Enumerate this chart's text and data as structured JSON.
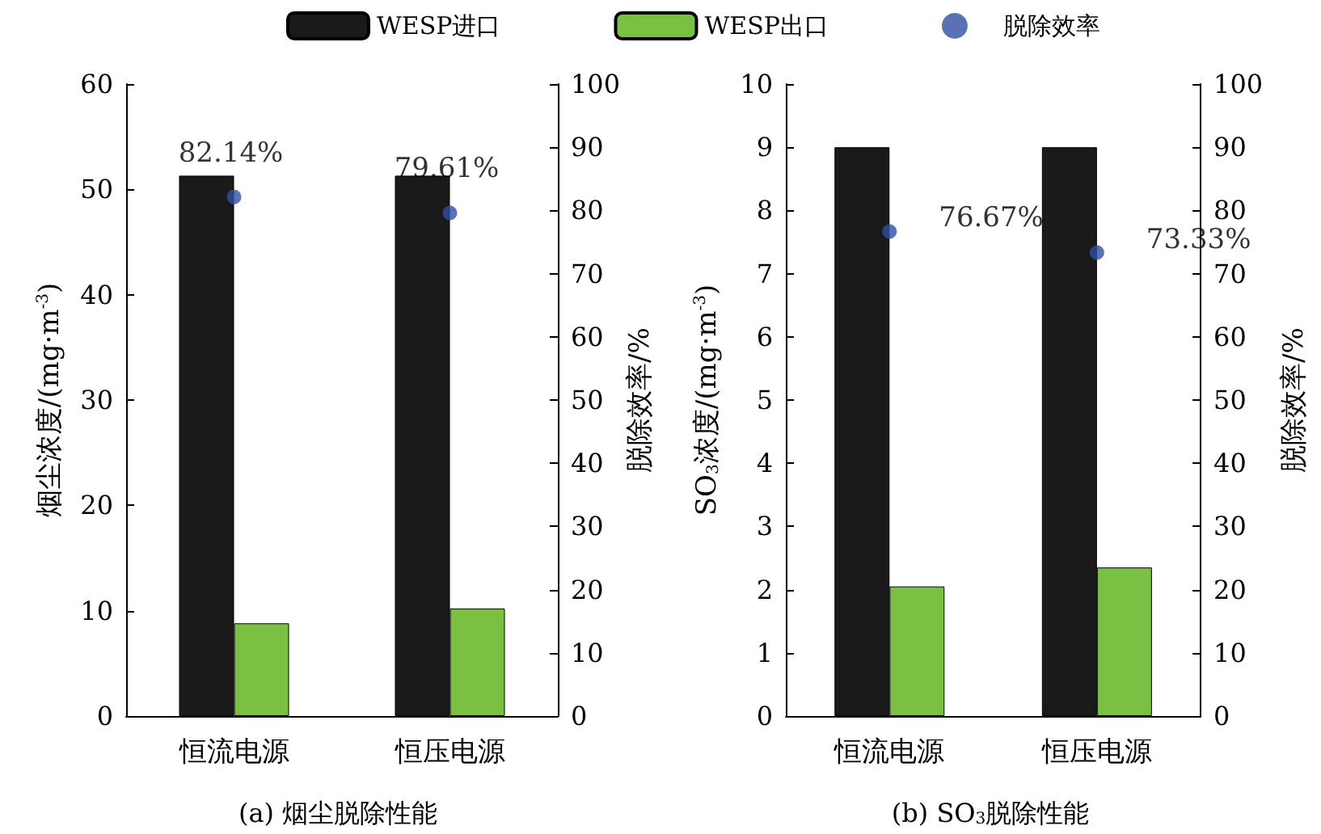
{
  "chart_data": [
    {
      "type": "bar",
      "title": "(a) 烟尘脱除性能",
      "ylabel": "烟尘浓度/(mg·m$^{-3}$)",
      "y2label": "脱除效率/%",
      "categories": [
        "恒流电源",
        "恒压电源"
      ],
      "series": [
        {
          "name": "WESP进口",
          "color": "#1a1a1a",
          "values": [
            51.3,
            51.3
          ]
        },
        {
          "name": "WESP出口",
          "color": "#7ac143",
          "values": [
            8.8,
            10.2
          ]
        },
        {
          "name": "脱除效率",
          "type": "scatter",
          "axis": "y2",
          "color": "#2e4fa0",
          "values": [
            82.14,
            79.61
          ],
          "value_labels": [
            "82.14%",
            "79.61%"
          ]
        }
      ],
      "ylim": [
        0,
        60
      ],
      "yticks": [
        0,
        10,
        20,
        30,
        40,
        50,
        60
      ],
      "y2lim": [
        0,
        100
      ],
      "y2ticks": [
        0,
        10,
        20,
        30,
        40,
        50,
        60,
        70,
        80,
        90,
        100
      ],
      "legend": "top",
      "marker": "circle"
    },
    {
      "type": "bar",
      "title": "(b) SO$_{3}$脱除性能",
      "ylabel": "SO$_{3}$浓度/(mg·m$^{-3}$)",
      "y2label": "脱除效率/%",
      "categories": [
        "恒流电源",
        "恒压电源"
      ],
      "series": [
        {
          "color": "#1a1a1a",
          "values": [
            9.0,
            9.0
          ]
        },
        {
          "color": "#7ac143",
          "values": [
            2.05,
            2.35
          ]
        },
        {
          "type": "scatter",
          "axis": "y2",
          "color": "#2e4fa0",
          "values": [
            76.67,
            73.33
          ],
          "value_labels": [
            "76.67%",
            "73.33%"
          ]
        }
      ],
      "ylim": [
        0,
        10
      ],
      "yticks": [
        0,
        1,
        2,
        3,
        4,
        5,
        6,
        7,
        8,
        9,
        10
      ],
      "y2lim": [
        0,
        100
      ],
      "y2ticks": [
        0,
        10,
        20,
        30,
        40,
        50,
        60,
        70,
        80,
        90,
        100
      ],
      "marker": "circle"
    }
  ]
}
